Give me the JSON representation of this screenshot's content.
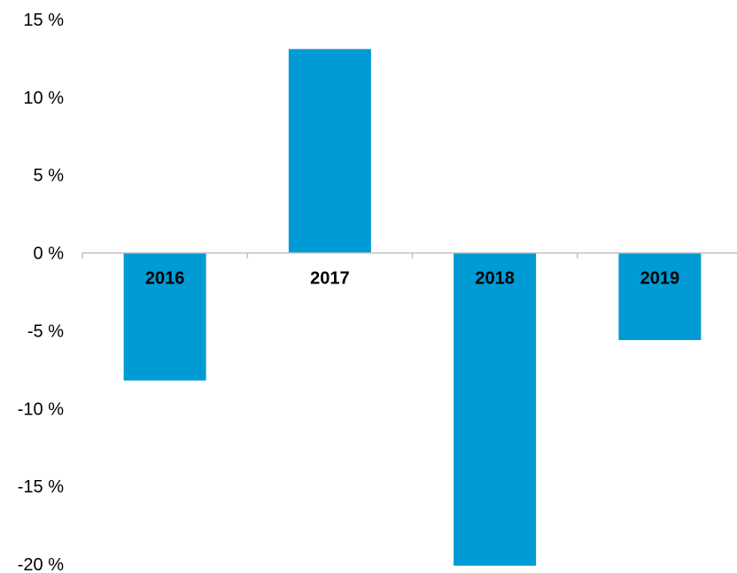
{
  "chart_data": {
    "type": "bar",
    "categories": [
      "2016",
      "2017",
      "2018",
      "2019"
    ],
    "values": [
      -8.2,
      13.1,
      -20.1,
      -5.6
    ],
    "ylim": [
      -20,
      15
    ],
    "yticks": [
      15,
      10,
      5,
      0,
      -5,
      -10,
      -15,
      -20
    ],
    "ytick_labels": [
      "15 %",
      "10 %",
      "5 %",
      "0 %",
      "-5 %",
      "-10 %",
      "-15 %",
      "-20 %"
    ],
    "title": "",
    "xlabel": "",
    "ylabel": "",
    "grid": false,
    "legend": "none",
    "bar_color": "#009ad4"
  }
}
